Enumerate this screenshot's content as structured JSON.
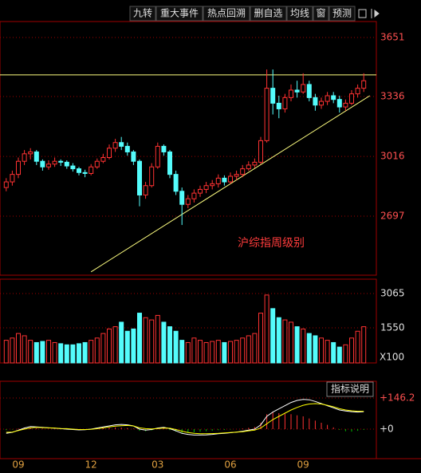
{
  "toolbar": [
    "九转",
    "重大事件",
    "热点回溯",
    "删自选",
    "均线",
    "窗",
    "预测"
  ],
  "indicator_button": "指标说明",
  "chart_data": [
    {
      "type": "candlestick",
      "annotation": "沪综指周级别",
      "categories": [
        null,
        null,
        "09",
        null,
        null,
        null,
        null,
        null,
        null,
        null,
        null,
        null,
        null,
        null,
        "12",
        null,
        null,
        null,
        null,
        null,
        null,
        null,
        null,
        null,
        null,
        "03",
        null,
        null,
        null,
        null,
        null,
        null,
        null,
        null,
        null,
        null,
        null,
        "06",
        null,
        null,
        null,
        null,
        null,
        null,
        null,
        null,
        null,
        null,
        null,
        "09",
        null,
        null,
        null,
        null,
        null,
        null,
        null,
        null,
        null,
        null
      ],
      "ohlc": [
        [
          2850,
          2900,
          2830,
          2880
        ],
        [
          2880,
          2940,
          2860,
          2920
        ],
        [
          2920,
          3010,
          2900,
          2990
        ],
        [
          2990,
          3050,
          2970,
          3030
        ],
        [
          3030,
          3060,
          3000,
          3040
        ],
        [
          3040,
          3050,
          2970,
          2990
        ],
        [
          2990,
          3000,
          2940,
          2960
        ],
        [
          2960,
          2995,
          2945,
          2975
        ],
        [
          2975,
          3010,
          2960,
          2990
        ],
        [
          2990,
          3000,
          2965,
          2985
        ],
        [
          2985,
          2995,
          2950,
          2965
        ],
        [
          2965,
          2980,
          2935,
          2950
        ],
        [
          2950,
          2960,
          2915,
          2930
        ],
        [
          2930,
          2945,
          2905,
          2925
        ],
        [
          2925,
          2975,
          2915,
          2960
        ],
        [
          2960,
          3005,
          2950,
          2990
        ],
        [
          2990,
          3030,
          2980,
          3010
        ],
        [
          3010,
          3080,
          3000,
          3060
        ],
        [
          3060,
          3110,
          3040,
          3090
        ],
        [
          3090,
          3120,
          3050,
          3070
        ],
        [
          3070,
          3090,
          3020,
          3040
        ],
        [
          3040,
          3050,
          2970,
          2990
        ],
        [
          2990,
          3000,
          2750,
          2810
        ],
        [
          2810,
          2880,
          2790,
          2860
        ],
        [
          2860,
          2980,
          2850,
          2960
        ],
        [
          2960,
          3090,
          2950,
          3070
        ],
        [
          3070,
          3080,
          3020,
          3040
        ],
        [
          3040,
          3050,
          2900,
          2920
        ],
        [
          2920,
          2940,
          2810,
          2830
        ],
        [
          2830,
          2850,
          2650,
          2760
        ],
        [
          2760,
          2810,
          2740,
          2790
        ],
        [
          2790,
          2840,
          2770,
          2820
        ],
        [
          2820,
          2860,
          2800,
          2840
        ],
        [
          2840,
          2880,
          2820,
          2860
        ],
        [
          2860,
          2890,
          2840,
          2870
        ],
        [
          2870,
          2920,
          2850,
          2900
        ],
        [
          2900,
          2915,
          2860,
          2880
        ],
        [
          2880,
          2930,
          2870,
          2910
        ],
        [
          2910,
          2940,
          2890,
          2920
        ],
        [
          2920,
          2970,
          2905,
          2950
        ],
        [
          2950,
          2990,
          2940,
          2970
        ],
        [
          2970,
          3005,
          2955,
          2985
        ],
        [
          2985,
          3120,
          2975,
          3100
        ],
        [
          3100,
          3480,
          3090,
          3380
        ],
        [
          3380,
          3480,
          3240,
          3300
        ],
        [
          3300,
          3340,
          3220,
          3270
        ],
        [
          3270,
          3350,
          3250,
          3330
        ],
        [
          3330,
          3400,
          3310,
          3370
        ],
        [
          3370,
          3420,
          3330,
          3360
        ],
        [
          3360,
          3460,
          3350,
          3400
        ],
        [
          3400,
          3420,
          3310,
          3330
        ],
        [
          3330,
          3350,
          3260,
          3290
        ],
        [
          3290,
          3330,
          3270,
          3310
        ],
        [
          3310,
          3360,
          3290,
          3340
        ],
        [
          3340,
          3360,
          3300,
          3320
        ],
        [
          3320,
          3340,
          3250,
          3280
        ],
        [
          3280,
          3320,
          3260,
          3300
        ],
        [
          3300,
          3370,
          3290,
          3350
        ],
        [
          3350,
          3400,
          3330,
          3380
        ],
        [
          3380,
          3460,
          3360,
          3420
        ]
      ],
      "ylim": [
        2382,
        3736
      ],
      "yticks": [
        2697,
        3016,
        3336,
        3651
      ],
      "reference_line": {
        "value": 3451,
        "color": "#ffff80"
      },
      "trendline": {
        "at": [
          14,
          60
        ],
        "values": [
          2400,
          3340
        ],
        "color": "#ffff80"
      },
      "up_color": "#ff3232",
      "down_color": "#54fcfc"
    },
    {
      "type": "volume",
      "values": [
        1000,
        1100,
        1300,
        1200,
        1000,
        900,
        950,
        1000,
        900,
        850,
        800,
        800,
        850,
        900,
        1000,
        1100,
        1300,
        1500,
        1600,
        1800,
        1400,
        1500,
        2200,
        2000,
        1900,
        2100,
        1800,
        1600,
        1400,
        1000,
        900,
        1100,
        1000,
        900,
        950,
        1000,
        900,
        950,
        1000,
        1100,
        1200,
        1300,
        2200,
        3000,
        2400,
        2000,
        1900,
        1800,
        1600,
        1500,
        1300,
        1200,
        1100,
        1000,
        900,
        700,
        800,
        1100,
        1400,
        1600
      ],
      "ylim": [
        0,
        3700
      ],
      "yticks": [
        1550,
        3065
      ],
      "unit": "X100"
    },
    {
      "type": "macd",
      "values": [
        -5,
        -2,
        2,
        5,
        6,
        4,
        2,
        1,
        0,
        -1,
        -2,
        -3,
        -3,
        -2,
        0,
        2,
        4,
        6,
        8,
        7,
        5,
        2,
        -8,
        -10,
        -6,
        2,
        3,
        -5,
        -12,
        -20,
        -18,
        -15,
        -12,
        -10,
        -8,
        -5,
        -4,
        -2,
        0,
        3,
        6,
        10,
        30,
        70,
        80,
        75,
        72,
        70,
        65,
        60,
        50,
        40,
        30,
        20,
        8,
        -4,
        -10,
        -12,
        -8,
        -4
      ],
      "series": [
        {
          "name": "DIF",
          "color": "#ffffff",
          "values": [
            -20,
            -15,
            -5,
            5,
            12,
            10,
            8,
            6,
            4,
            2,
            0,
            -2,
            -4,
            -3,
            0,
            5,
            10,
            15,
            20,
            22,
            20,
            15,
            0,
            -5,
            -2,
            5,
            8,
            2,
            -8,
            -20,
            -25,
            -28,
            -28,
            -27,
            -25,
            -22,
            -20,
            -17,
            -14,
            -10,
            -5,
            0,
            20,
            60,
            80,
            95,
            110,
            125,
            135,
            140,
            138,
            130,
            120,
            110,
            100,
            90,
            85,
            82,
            80,
            82
          ]
        },
        {
          "name": "DEA",
          "color": "#ffff00",
          "values": [
            -15,
            -14,
            -7,
            0,
            6,
            8,
            7,
            6,
            5,
            3,
            2,
            0,
            -2,
            -2,
            -1,
            2,
            6,
            10,
            14,
            16,
            17,
            15,
            6,
            2,
            1,
            3,
            5,
            4,
            -2,
            -10,
            -16,
            -20,
            -22,
            -22,
            -21,
            -20,
            -18,
            -16,
            -14,
            -12,
            -8,
            -5,
            5,
            25,
            45,
            60,
            75,
            90,
            102,
            112,
            118,
            120,
            118,
            112,
            105,
            96,
            90,
            86,
            84,
            84
          ]
        }
      ],
      "ylim": [
        -139,
        225
      ],
      "yticks": [
        {
          "value": 0,
          "label": "+0"
        },
        {
          "value": 146.2,
          "label": "+146.2"
        }
      ]
    }
  ]
}
